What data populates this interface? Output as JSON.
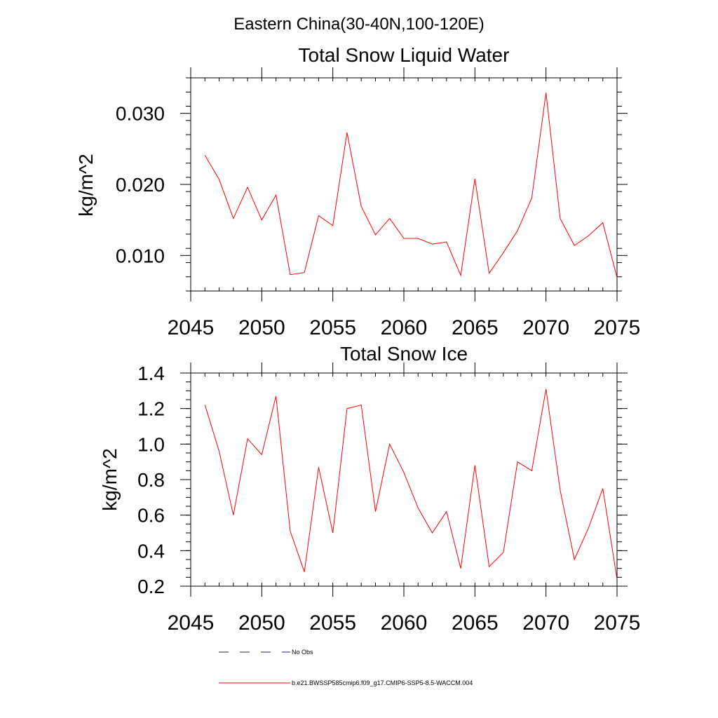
{
  "figure": {
    "title": "Eastern China(30-40N,100-120E)"
  },
  "chart_data": [
    {
      "type": "line",
      "title": "Total Snow Liquid Water",
      "xlabel": "",
      "ylabel": "kg/m^2",
      "xlim": [
        2045,
        2075
      ],
      "ylim": [
        0.005,
        0.035
      ],
      "x_ticks": [
        2045,
        2050,
        2055,
        2060,
        2065,
        2070,
        2075
      ],
      "x_tick_labels": [
        "2045",
        "2050",
        "2055",
        "2060",
        "2065",
        "2070",
        "2075"
      ],
      "y_ticks": [
        0.01,
        0.02,
        0.03
      ],
      "y_tick_labels": [
        "0.010",
        "0.020",
        "0.030"
      ],
      "y_minor_step": 0.002,
      "x_minor_step": 1,
      "series": [
        {
          "name": "b.e21.BWSSP585cmip6.f09_g17.CMIP6-SSP5-8.5-WACCM.004",
          "color": "#ff0000",
          "x": [
            2046,
            2047,
            2048,
            2049,
            2050,
            2051,
            2052,
            2053,
            2054,
            2055,
            2056,
            2057,
            2058,
            2059,
            2060,
            2061,
            2062,
            2063,
            2064,
            2065,
            2066,
            2067,
            2068,
            2069,
            2070,
            2071,
            2072,
            2073,
            2074,
            2075
          ],
          "values": [
            0.0241,
            0.0207,
            0.0152,
            0.0196,
            0.015,
            0.0185,
            0.0073,
            0.0076,
            0.0156,
            0.0142,
            0.0273,
            0.0169,
            0.0129,
            0.0152,
            0.0124,
            0.0124,
            0.0116,
            0.0119,
            0.0072,
            0.0208,
            0.0075,
            0.0104,
            0.0135,
            0.0181,
            0.0329,
            0.0152,
            0.0114,
            0.0128,
            0.0146,
            0.0069
          ]
        }
      ]
    },
    {
      "type": "line",
      "title": "Total Snow Ice",
      "xlabel": "",
      "ylabel": "kg/m^2",
      "xlim": [
        2045,
        2075
      ],
      "ylim": [
        0.2,
        1.4
      ],
      "x_ticks": [
        2045,
        2050,
        2055,
        2060,
        2065,
        2070,
        2075
      ],
      "x_tick_labels": [
        "2045",
        "2050",
        "2055",
        "2060",
        "2065",
        "2070",
        "2075"
      ],
      "y_ticks": [
        0.2,
        0.4,
        0.6,
        0.8,
        1.0,
        1.2,
        1.4
      ],
      "y_tick_labels": [
        "0.2",
        "0.4",
        "0.6",
        "0.8",
        "1.0",
        "1.2",
        "1.4"
      ],
      "y_minor_step": 0.05,
      "x_minor_step": 1,
      "series": [
        {
          "name": "b.e21.BWSSP585cmip6.f09_g17.CMIP6-SSP5-8.5-WACCM.004",
          "color": "#ff0000",
          "x": [
            2046,
            2047,
            2048,
            2049,
            2050,
            2051,
            2052,
            2053,
            2054,
            2055,
            2056,
            2057,
            2058,
            2059,
            2060,
            2061,
            2062,
            2063,
            2064,
            2065,
            2066,
            2067,
            2068,
            2069,
            2070,
            2071,
            2072,
            2073,
            2074,
            2075
          ],
          "values": [
            1.22,
            0.96,
            0.6,
            1.03,
            0.94,
            1.27,
            0.51,
            0.28,
            0.87,
            0.5,
            1.2,
            1.22,
            0.62,
            1.0,
            0.84,
            0.64,
            0.5,
            0.62,
            0.3,
            0.88,
            0.31,
            0.39,
            0.9,
            0.85,
            1.31,
            0.74,
            0.35,
            0.53,
            0.75,
            0.24
          ]
        }
      ]
    }
  ],
  "legend": {
    "items": [
      {
        "label": "No Obs",
        "color": "#1f2a6e",
        "style": "dashed"
      },
      {
        "label": "b.e21.BWSSP585cmip6.f09_g17.CMIP6-SSP5-8.5-WACCM.004",
        "color": "#ff0000",
        "style": "solid"
      }
    ]
  }
}
